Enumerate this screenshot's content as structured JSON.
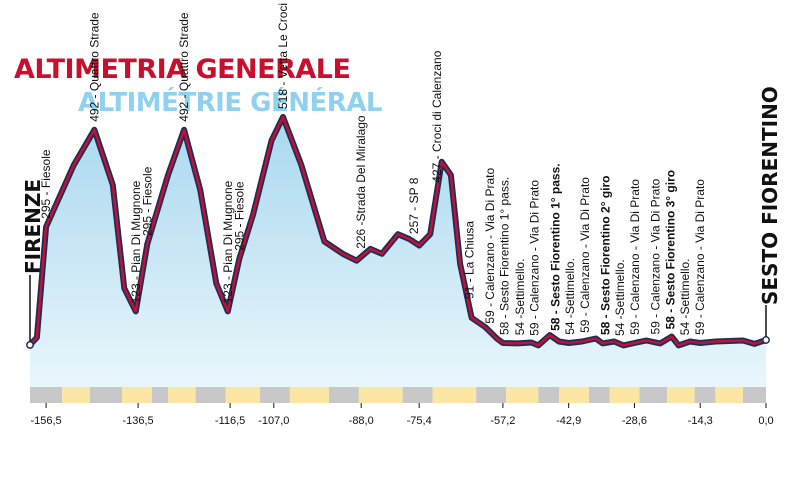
{
  "header": {
    "title_it": "ALTIMETRIA GENERALE",
    "title_fr": "ALTIMÉTRIE GÉNÉRAL"
  },
  "route": {
    "start": "FIRENZE",
    "finish": "SESTO FIORENTINO"
  },
  "colors": {
    "title_it": "#c8102e",
    "title_fr": "#8fd1ee",
    "profile_line": "#c8102e",
    "profile_outline": "#1c2f5c",
    "fill_top": "#a9d8ee",
    "fill_bottom": "#e9f6fc",
    "band_yellow": "#fbe7a3",
    "band_grey": "#c8c8c8"
  },
  "chart_data": {
    "type": "area",
    "title": "ALTIMETRIA GENERALE",
    "subtitle": "ALTIMÉTRIE GÉNÉRAL",
    "xlabel": "",
    "ylabel": "",
    "x_direction": "km to finish, descending",
    "xlim": [
      -160,
      0
    ],
    "ylim": [
      0,
      650
    ],
    "grid": false,
    "x_ticks": [
      {
        "x": -156.5,
        "label": "-156,5"
      },
      {
        "x": -136.5,
        "label": "-136,5"
      },
      {
        "x": -116.5,
        "label": "-116,5"
      },
      {
        "x": -107.0,
        "label": "-107,0"
      },
      {
        "x": -88.0,
        "label": "-88,0"
      },
      {
        "x": -75.4,
        "label": "-75,4"
      },
      {
        "x": -57.2,
        "label": "-57,2"
      },
      {
        "x": -42.9,
        "label": "-42,9"
      },
      {
        "x": -28.6,
        "label": "-28,6"
      },
      {
        "x": -14.3,
        "label": "-14,3"
      },
      {
        "x": 0.0,
        "label": "0,0"
      }
    ],
    "profile": [
      [
        -160.0,
        55
      ],
      [
        -158.5,
        70
      ],
      [
        -156.5,
        295
      ],
      [
        -150.5,
        420
      ],
      [
        -146.0,
        492
      ],
      [
        -142.0,
        380
      ],
      [
        -139.5,
        170
      ],
      [
        -137.0,
        123
      ],
      [
        -134.5,
        260
      ],
      [
        -130.0,
        400
      ],
      [
        -126.5,
        492
      ],
      [
        -123.0,
        370
      ],
      [
        -119.5,
        180
      ],
      [
        -117.0,
        123
      ],
      [
        -114.5,
        230
      ],
      [
        -111.5,
        320
      ],
      [
        -107.5,
        470
      ],
      [
        -105.0,
        518
      ],
      [
        -101.0,
        420
      ],
      [
        -96.0,
        265
      ],
      [
        -92.0,
        240
      ],
      [
        -89.0,
        226
      ],
      [
        -86.0,
        250
      ],
      [
        -83.5,
        240
      ],
      [
        -80.0,
        280
      ],
      [
        -77.5,
        270
      ],
      [
        -75.4,
        257
      ],
      [
        -73.0,
        280
      ],
      [
        -70.5,
        427
      ],
      [
        -68.5,
        400
      ],
      [
        -66.5,
        220
      ],
      [
        -64.0,
        110
      ],
      [
        -61.0,
        91
      ],
      [
        -58.5,
        68
      ],
      [
        -57.2,
        59
      ],
      [
        -54.0,
        58
      ],
      [
        -51.0,
        60
      ],
      [
        -49.5,
        54
      ],
      [
        -47.0,
        75
      ],
      [
        -45.0,
        62
      ],
      [
        -42.9,
        59
      ],
      [
        -40.0,
        62
      ],
      [
        -37.0,
        68
      ],
      [
        -35.5,
        58
      ],
      [
        -33.0,
        62
      ],
      [
        -31.0,
        54
      ],
      [
        -28.6,
        59
      ],
      [
        -26.0,
        64
      ],
      [
        -23.0,
        58
      ],
      [
        -20.5,
        72
      ],
      [
        -19.0,
        54
      ],
      [
        -16.5,
        62
      ],
      [
        -14.3,
        59
      ],
      [
        -11.0,
        62
      ],
      [
        -8.0,
        63
      ],
      [
        -5.0,
        64
      ],
      [
        -2.5,
        57
      ],
      [
        0.0,
        65
      ]
    ],
    "waypoints": [
      {
        "x": -156.5,
        "label": "295 - Fiesole",
        "bold": false
      },
      {
        "x": -146.0,
        "label": "492 - Quattro Strade",
        "bold": false
      },
      {
        "x": -137.0,
        "label": "123 - Pian Di Mugnone",
        "bold": false
      },
      {
        "x": -134.5,
        "label": "295 - Fiesole",
        "bold": false
      },
      {
        "x": -126.5,
        "label": "492 - Quattro Strade",
        "bold": false
      },
      {
        "x": -117.0,
        "label": "123 - Pian Di Mugnone",
        "bold": false
      },
      {
        "x": -114.5,
        "label": "295 - Fiesole",
        "bold": false
      },
      {
        "x": -105.0,
        "label": "518 - Vetta Le Croci",
        "bold": false
      },
      {
        "x": -88.0,
        "label": "226 -Strada Del Miralago",
        "bold": false
      },
      {
        "x": -76.5,
        "label": "257 - SP 8",
        "bold": false
      },
      {
        "x": -71.5,
        "label": "427 - Croci di Calenzano",
        "bold": false
      },
      {
        "x": -64.5,
        "label": "91 - La Chiusa",
        "bold": false
      },
      {
        "x": -60.0,
        "label": "59 - Calenzano - Via Di Prato",
        "bold": false
      },
      {
        "x": -56.8,
        "label": "58 - Sesto Fiorentino 1° pass.",
        "bold": false
      },
      {
        "x": -53.5,
        "label": "54 -Settimello.",
        "bold": false
      },
      {
        "x": -50.3,
        "label": "59 - Calenzano - Via Di Prato",
        "bold": false
      },
      {
        "x": -45.8,
        "label": "58 - Sesto Fiorentino 1° pass.",
        "bold": true
      },
      {
        "x": -42.6,
        "label": "54 -Settimello.",
        "bold": false
      },
      {
        "x": -39.4,
        "label": "59 - Calenzano - Via Di Prato",
        "bold": false
      },
      {
        "x": -34.9,
        "label": "58 - Sesto Fiorentino 2° giro",
        "bold": true
      },
      {
        "x": -31.7,
        "label": "54 -Settimello.",
        "bold": false
      },
      {
        "x": -28.5,
        "label": "59 - Calenzano - Via Di Prato",
        "bold": false
      },
      {
        "x": -24.0,
        "label": "59 - Calenzano - Via Di Prato",
        "bold": false
      },
      {
        "x": -20.8,
        "label": "58 - Sesto Fiorentino 3° giro",
        "bold": true
      },
      {
        "x": -17.6,
        "label": "54 -Settimello.",
        "bold": false
      },
      {
        "x": -14.4,
        "label": "59 - Calenzano - Via Di Prato",
        "bold": false
      }
    ],
    "bands": [
      {
        "from": -160.0,
        "to": -153.0,
        "kind": "grey"
      },
      {
        "from": -153.0,
        "to": -147.0,
        "kind": "yellow"
      },
      {
        "from": -147.0,
        "to": -140.0,
        "kind": "grey"
      },
      {
        "from": -140.0,
        "to": -133.5,
        "kind": "yellow"
      },
      {
        "from": -133.5,
        "to": -130.0,
        "kind": "grey"
      },
      {
        "from": -130.0,
        "to": -124.0,
        "kind": "yellow"
      },
      {
        "from": -124.0,
        "to": -117.5,
        "kind": "grey"
      },
      {
        "from": -117.5,
        "to": -110.0,
        "kind": "yellow"
      },
      {
        "from": -110.0,
        "to": -103.5,
        "kind": "grey"
      },
      {
        "from": -103.5,
        "to": -95.0,
        "kind": "yellow"
      },
      {
        "from": -95.0,
        "to": -88.5,
        "kind": "grey"
      },
      {
        "from": -88.5,
        "to": -79.0,
        "kind": "yellow"
      },
      {
        "from": -79.0,
        "to": -72.5,
        "kind": "grey"
      },
      {
        "from": -72.5,
        "to": -63.0,
        "kind": "yellow"
      },
      {
        "from": -63.0,
        "to": -56.5,
        "kind": "grey"
      },
      {
        "from": -56.5,
        "to": -49.5,
        "kind": "yellow"
      },
      {
        "from": -49.5,
        "to": -45.0,
        "kind": "grey"
      },
      {
        "from": -45.0,
        "to": -38.5,
        "kind": "yellow"
      },
      {
        "from": -38.5,
        "to": -34.0,
        "kind": "grey"
      },
      {
        "from": -34.0,
        "to": -27.5,
        "kind": "yellow"
      },
      {
        "from": -27.5,
        "to": -21.5,
        "kind": "grey"
      },
      {
        "from": -21.5,
        "to": -15.5,
        "kind": "yellow"
      },
      {
        "from": -15.5,
        "to": -11.0,
        "kind": "grey"
      },
      {
        "from": -11.0,
        "to": -5.0,
        "kind": "yellow"
      },
      {
        "from": -5.0,
        "to": 0.0,
        "kind": "grey"
      }
    ]
  }
}
